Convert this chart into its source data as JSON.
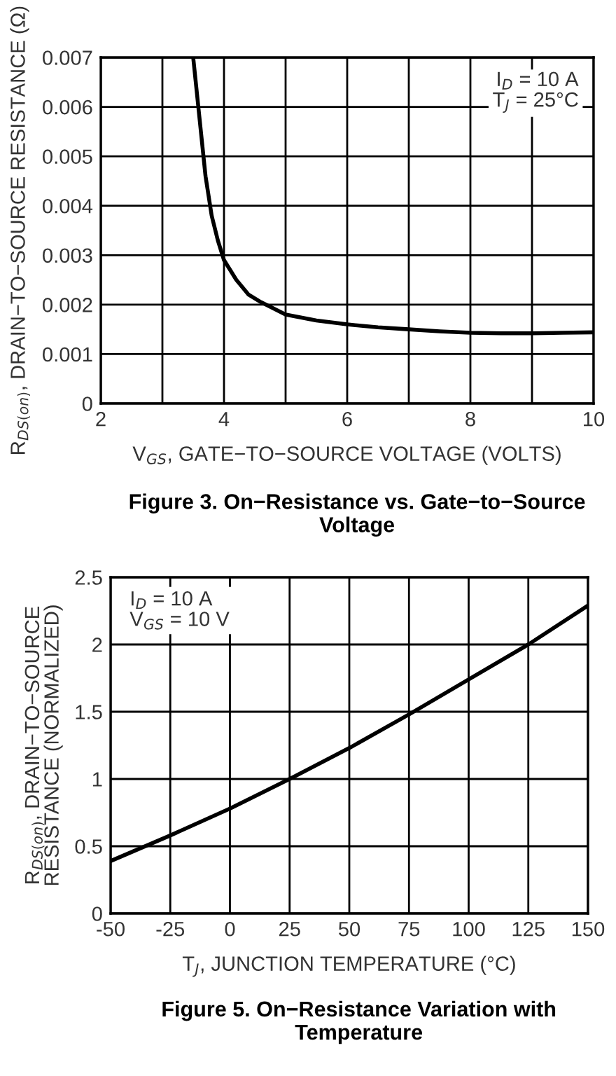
{
  "chart_data": [
    {
      "type": "line",
      "title": "Figure 3. On−Resistance vs. Gate−to−Source Voltage",
      "xlabel": "V$_{GS}$, GATE−TO−SOURCE VOLTAGE (VOLTS)",
      "ylabel": "R$_{DS(on)}$, DRAIN−TO−SOURCE RESISTANCE (Ω)",
      "annotations": [
        "I$_{D}$ = 10 A",
        "T$_{J}$ = 25°C"
      ],
      "series": [
        {
          "color": "#000000",
          "x": [
            3.5,
            3.6,
            3.7,
            3.8,
            3.9,
            4,
            4.2,
            4.4,
            4.6,
            5,
            5.5,
            6,
            6.5,
            7,
            7.5,
            8,
            8.5,
            9,
            9.5,
            10
          ],
          "values": [
            0.007,
            0.0058,
            0.0046,
            0.0038,
            0.0033,
            0.0029,
            0.0025,
            0.0022,
            0.00205,
            0.0018,
            0.00168,
            0.0016,
            0.00154,
            0.0015,
            0.00146,
            0.00143,
            0.00142,
            0.00142,
            0.00143,
            0.00144
          ]
        }
      ],
      "xlim": [
        2,
        10
      ],
      "xticks": [
        2,
        {
          "value": 3,
          "label": null
        },
        4,
        {
          "value": 5,
          "label": null
        },
        6,
        {
          "value": 7,
          "label": null
        },
        8,
        {
          "value": 9,
          "label": null
        },
        10
      ],
      "ylim": [
        0,
        0.007
      ],
      "yticks": [
        0,
        0.001,
        0.002,
        0.003,
        0.004,
        0.005,
        0.006,
        0.007
      ],
      "grid": true,
      "marker": "none",
      "line_style": "solid",
      "legend": false
    },
    {
      "type": "line",
      "title": "Figure 5. On−Resistance Variation with Temperature",
      "xlabel": "T$_{J}$, JUNCTION TEMPERATURE (°C)",
      "ylabel": "R$_{DS(on)}$, DRAIN−TO−SOURCE\nRESISTANCE (NORMALIZED)",
      "annotations": [
        "I$_{D}$ = 10 A",
        "V$_{GS}$ = 10 V"
      ],
      "series": [
        {
          "color": "#000000",
          "x": [
            -50,
            -25,
            0,
            25,
            50,
            75,
            100,
            125,
            150
          ],
          "values": [
            0.39,
            0.58,
            0.78,
            1.0,
            1.23,
            1.48,
            1.74,
            2.0,
            2.29
          ]
        }
      ],
      "xlim": [
        -50,
        150
      ],
      "xticks": [
        -50,
        -25,
        0,
        25,
        50,
        75,
        100,
        125,
        150
      ],
      "ylim": [
        0,
        2.5
      ],
      "yticks": [
        0,
        0.5,
        1,
        1.5,
        2,
        2.5
      ],
      "grid": true,
      "marker": "none",
      "line_style": "solid",
      "legend": false
    }
  ]
}
